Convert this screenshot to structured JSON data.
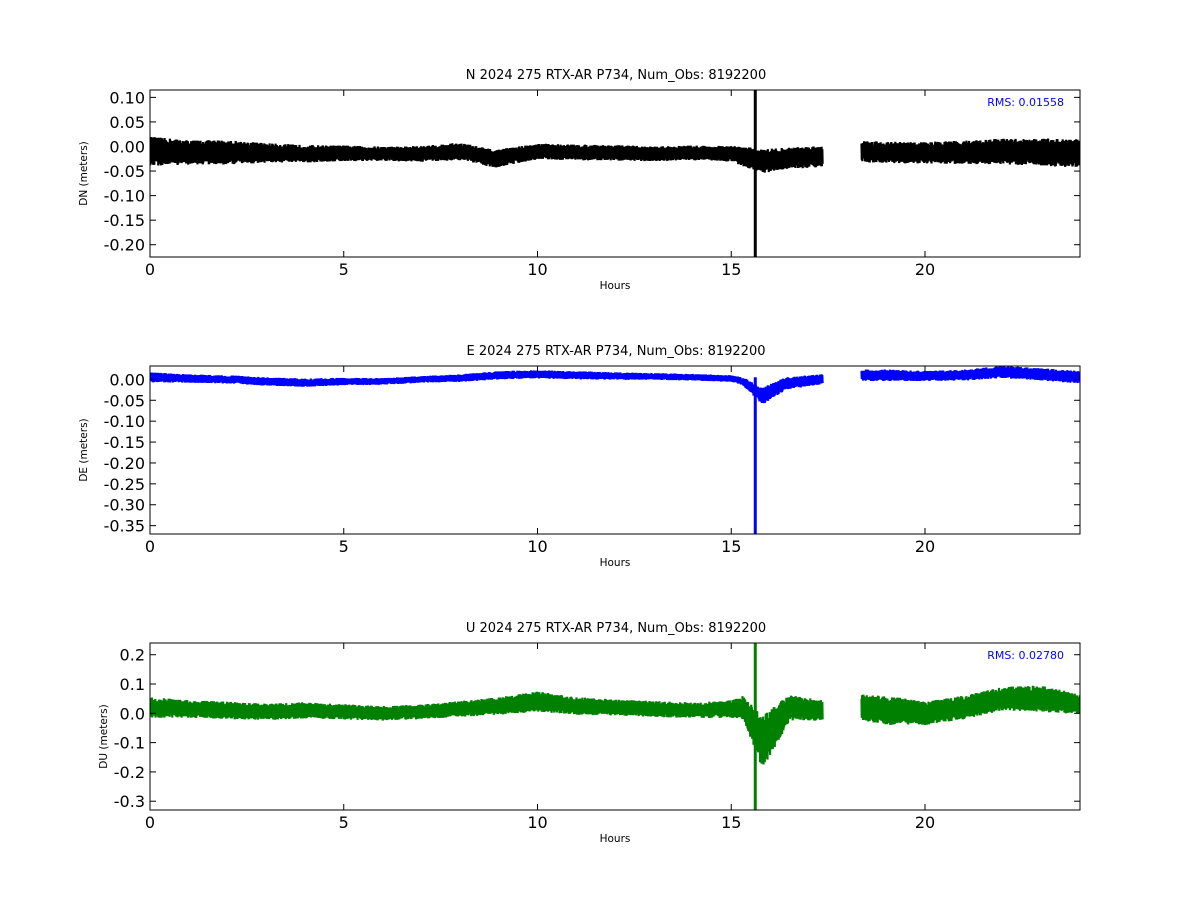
{
  "chart_data": [
    {
      "type": "line",
      "title": "N 2024 275 RTX-AR  P734, Num_Obs: 8192200",
      "xlabel": "Hours",
      "ylabel": "DN (meters)",
      "xlim": [
        0,
        24
      ],
      "ylim": [
        -0.225,
        0.115
      ],
      "xticks": [
        "0",
        "5",
        "10",
        "15",
        "20"
      ],
      "yticks": [
        "0.10",
        "0.05",
        "0.00",
        "-0.05",
        "-0.10",
        "-0.15",
        "-0.20"
      ],
      "rms_label": "RMS:  0.01558",
      "color": "#000000",
      "gap": [
        17.35,
        18.35
      ],
      "spike": {
        "x": 15.62,
        "min": -0.225,
        "max": 0.115
      },
      "series": [
        {
          "x": [
            0,
            1,
            2,
            3,
            4,
            5,
            6,
            7,
            8,
            8.9,
            10,
            11,
            12,
            13,
            14,
            15,
            15.3,
            15.8,
            16.3,
            17.3,
            18.4,
            19,
            20,
            21,
            22,
            23,
            24
          ],
          "center": [
            -0.01,
            -0.012,
            -0.012,
            -0.013,
            -0.015,
            -0.014,
            -0.015,
            -0.015,
            -0.01,
            -0.025,
            -0.01,
            -0.012,
            -0.013,
            -0.015,
            -0.013,
            -0.015,
            -0.02,
            -0.03,
            -0.025,
            -0.02,
            -0.01,
            -0.012,
            -0.013,
            -0.012,
            -0.01,
            -0.012,
            -0.013
          ],
          "band": [
            0.03,
            0.025,
            0.025,
            0.02,
            0.018,
            0.016,
            0.015,
            0.016,
            0.018,
            0.018,
            0.016,
            0.016,
            0.016,
            0.015,
            0.015,
            0.016,
            0.02,
            0.025,
            0.022,
            0.022,
            0.022,
            0.022,
            0.022,
            0.024,
            0.026,
            0.028,
            0.03
          ]
        }
      ]
    },
    {
      "type": "line",
      "title": "E 2024 275 RTX-AR  P734, Num_Obs: 8192200",
      "xlabel": "Hours",
      "ylabel": "DE (meters)",
      "xlim": [
        0,
        24
      ],
      "ylim": [
        -0.37,
        0.032
      ],
      "xticks": [
        "0",
        "5",
        "10",
        "15",
        "20"
      ],
      "yticks": [
        "0.00",
        "-0.05",
        "-0.10",
        "-0.15",
        "-0.20",
        "-0.25",
        "-0.30",
        "-0.35"
      ],
      "rms_label": "",
      "color": "#0000ff",
      "gap": [
        17.35,
        18.35
      ],
      "spike": {
        "x": 15.62,
        "min": -0.37,
        "max": 0.005
      },
      "series": [
        {
          "x": [
            0,
            1,
            2,
            3,
            4,
            5,
            6,
            7,
            8,
            9,
            10,
            11,
            12,
            13,
            14,
            15,
            15.3,
            15.8,
            16.4,
            17.3,
            18.4,
            19,
            20,
            21,
            22,
            23,
            24
          ],
          "center": [
            0.005,
            0.002,
            0.0,
            -0.005,
            -0.008,
            -0.005,
            -0.005,
            0.0,
            0.003,
            0.01,
            0.012,
            0.01,
            0.008,
            0.007,
            0.005,
            0.002,
            -0.005,
            -0.04,
            -0.01,
            0.0,
            0.01,
            0.01,
            0.008,
            0.01,
            0.018,
            0.012,
            0.005
          ],
          "band": [
            0.012,
            0.01,
            0.01,
            0.01,
            0.01,
            0.009,
            0.008,
            0.008,
            0.009,
            0.01,
            0.01,
            0.01,
            0.009,
            0.008,
            0.008,
            0.008,
            0.01,
            0.02,
            0.015,
            0.012,
            0.014,
            0.014,
            0.012,
            0.013,
            0.015,
            0.015,
            0.015
          ]
        }
      ]
    },
    {
      "type": "line",
      "title": "U 2024 275 RTX-AR  P734, Num_Obs: 8192200",
      "xlabel": "Hours",
      "ylabel": "DU (meters)",
      "xlim": [
        0,
        24
      ],
      "ylim": [
        -0.33,
        0.24
      ],
      "xticks": [
        "0",
        "5",
        "10",
        "15",
        "20"
      ],
      "yticks": [
        "0.2",
        "0.1",
        "0.0",
        "-0.1",
        "-0.2",
        "-0.3"
      ],
      "rms_label": "RMS:  0.02780",
      "color": "#008000",
      "gap": [
        17.35,
        18.35
      ],
      "spike": {
        "x": 15.62,
        "min": -0.33,
        "max": 0.24
      },
      "series": [
        {
          "x": [
            0,
            1,
            2,
            3,
            4,
            5,
            6,
            7,
            8,
            9,
            10,
            11,
            12,
            13,
            14,
            15,
            15.3,
            15.8,
            16.5,
            17.3,
            18.4,
            19,
            20,
            21,
            22,
            23,
            24
          ],
          "center": [
            0.02,
            0.015,
            0.01,
            0.005,
            0.01,
            0.005,
            0.0,
            0.005,
            0.015,
            0.025,
            0.04,
            0.025,
            0.02,
            0.015,
            0.01,
            0.015,
            0.02,
            -0.1,
            0.02,
            0.01,
            0.02,
            0.01,
            0.0,
            0.02,
            0.05,
            0.05,
            0.03
          ],
          "band": [
            0.035,
            0.03,
            0.03,
            0.028,
            0.028,
            0.026,
            0.025,
            0.025,
            0.027,
            0.03,
            0.035,
            0.03,
            0.028,
            0.027,
            0.027,
            0.03,
            0.04,
            0.09,
            0.045,
            0.035,
            0.045,
            0.05,
            0.04,
            0.04,
            0.04,
            0.045,
            0.035
          ]
        }
      ]
    }
  ]
}
